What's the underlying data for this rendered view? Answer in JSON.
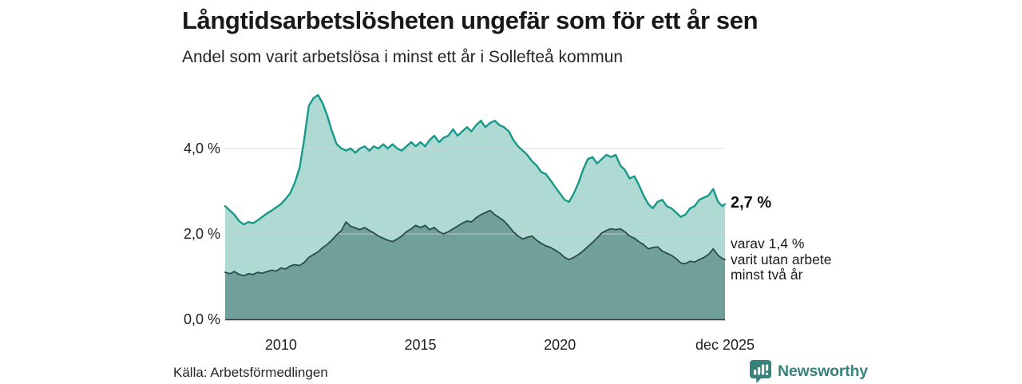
{
  "header": {
    "title": "Långtidsarbetslösheten ungefär som för ett år sen",
    "subtitle": "Andel som varit arbetslösa i minst ett år i Sollefteå kommun"
  },
  "chart_data": {
    "type": "area",
    "title": "Långtidsarbetslösheten ungefär som för ett år sen",
    "subtitle": "Andel som varit arbetslösa i minst ett år i Sollefteå kommun",
    "xlabel": "",
    "ylabel": "",
    "xlim": [
      2008.0,
      2025.92
    ],
    "ylim": [
      0,
      5.5
    ],
    "grid": true,
    "legend": "none",
    "x": [
      2008.0,
      2008.17,
      2008.33,
      2008.5,
      2008.67,
      2008.83,
      2009.0,
      2009.17,
      2009.33,
      2009.5,
      2009.67,
      2009.83,
      2010.0,
      2010.17,
      2010.33,
      2010.5,
      2010.67,
      2010.83,
      2011.0,
      2011.17,
      2011.33,
      2011.5,
      2011.67,
      2011.83,
      2012.0,
      2012.17,
      2012.33,
      2012.5,
      2012.67,
      2012.83,
      2013.0,
      2013.17,
      2013.33,
      2013.5,
      2013.67,
      2013.83,
      2014.0,
      2014.17,
      2014.33,
      2014.5,
      2014.67,
      2014.83,
      2015.0,
      2015.17,
      2015.33,
      2015.5,
      2015.67,
      2015.83,
      2016.0,
      2016.17,
      2016.33,
      2016.5,
      2016.67,
      2016.83,
      2017.0,
      2017.17,
      2017.33,
      2017.5,
      2017.67,
      2017.83,
      2018.0,
      2018.17,
      2018.33,
      2018.5,
      2018.67,
      2018.83,
      2019.0,
      2019.17,
      2019.33,
      2019.5,
      2019.67,
      2019.83,
      2020.0,
      2020.17,
      2020.33,
      2020.5,
      2020.67,
      2020.83,
      2021.0,
      2021.17,
      2021.33,
      2021.5,
      2021.67,
      2021.83,
      2022.0,
      2022.17,
      2022.33,
      2022.5,
      2022.67,
      2022.83,
      2023.0,
      2023.17,
      2023.33,
      2023.5,
      2023.67,
      2023.83,
      2024.0,
      2024.17,
      2024.33,
      2024.5,
      2024.67,
      2024.83,
      2025.0,
      2025.17,
      2025.33,
      2025.5,
      2025.67,
      2025.83,
      2025.92
    ],
    "series": [
      {
        "name": "Andel som varit arbetslösa i minst ett år",
        "line_color": "#17998a",
        "fill_color": "#aedad3",
        "end_value_label": "2,7 %",
        "values": [
          2.65,
          2.55,
          2.45,
          2.3,
          2.22,
          2.28,
          2.25,
          2.32,
          2.4,
          2.48,
          2.55,
          2.62,
          2.7,
          2.82,
          2.95,
          3.2,
          3.55,
          4.2,
          5.0,
          5.18,
          5.25,
          5.05,
          4.75,
          4.4,
          4.1,
          4.0,
          3.95,
          4.0,
          3.9,
          4.0,
          4.05,
          3.95,
          4.05,
          4.0,
          4.1,
          4.0,
          4.1,
          4.0,
          3.95,
          4.05,
          4.15,
          4.05,
          4.15,
          4.05,
          4.2,
          4.3,
          4.15,
          4.25,
          4.3,
          4.45,
          4.3,
          4.4,
          4.5,
          4.4,
          4.55,
          4.65,
          4.5,
          4.6,
          4.65,
          4.55,
          4.5,
          4.4,
          4.2,
          4.05,
          3.95,
          3.85,
          3.7,
          3.6,
          3.45,
          3.4,
          3.25,
          3.1,
          2.95,
          2.8,
          2.75,
          2.95,
          3.2,
          3.5,
          3.75,
          3.8,
          3.65,
          3.75,
          3.85,
          3.8,
          3.85,
          3.6,
          3.5,
          3.3,
          3.35,
          3.15,
          2.9,
          2.7,
          2.6,
          2.75,
          2.8,
          2.65,
          2.6,
          2.5,
          2.4,
          2.45,
          2.6,
          2.65,
          2.8,
          2.85,
          2.9,
          3.05,
          2.75,
          2.65,
          2.7
        ]
      },
      {
        "name": "Andel som varit arbetslösa i minst två år",
        "line_color": "#2a4c48",
        "fill_color": "#71a09a",
        "end_value_label": "varav 1,4 %",
        "values": [
          1.1,
          1.07,
          1.12,
          1.05,
          1.02,
          1.07,
          1.05,
          1.1,
          1.08,
          1.12,
          1.15,
          1.13,
          1.2,
          1.18,
          1.25,
          1.28,
          1.26,
          1.33,
          1.45,
          1.52,
          1.58,
          1.68,
          1.76,
          1.86,
          1.98,
          2.08,
          2.28,
          2.18,
          2.14,
          2.1,
          2.15,
          2.08,
          2.02,
          1.95,
          1.9,
          1.85,
          1.82,
          1.88,
          1.95,
          2.05,
          2.12,
          2.2,
          2.15,
          2.2,
          2.1,
          2.15,
          2.05,
          2.0,
          2.05,
          2.12,
          2.18,
          2.25,
          2.3,
          2.28,
          2.38,
          2.45,
          2.5,
          2.55,
          2.45,
          2.38,
          2.3,
          2.18,
          2.05,
          1.95,
          1.88,
          1.92,
          1.95,
          1.85,
          1.78,
          1.72,
          1.68,
          1.62,
          1.55,
          1.45,
          1.4,
          1.45,
          1.52,
          1.6,
          1.7,
          1.8,
          1.9,
          2.02,
          2.08,
          2.12,
          2.1,
          2.12,
          2.05,
          1.95,
          1.9,
          1.82,
          1.75,
          1.65,
          1.68,
          1.7,
          1.6,
          1.55,
          1.5,
          1.42,
          1.32,
          1.3,
          1.36,
          1.34,
          1.4,
          1.45,
          1.52,
          1.65,
          1.5,
          1.42,
          1.4
        ]
      }
    ],
    "yticks": [
      {
        "value": 0,
        "label": "0,0 %"
      },
      {
        "value": 2,
        "label": "2,0 %"
      },
      {
        "value": 4,
        "label": "4,0 %"
      }
    ],
    "xticks": [
      {
        "value": 2010,
        "label": "2010"
      },
      {
        "value": 2015,
        "label": "2015"
      },
      {
        "value": 2020,
        "label": "2020"
      },
      {
        "value": 2025.92,
        "label": "dec 2025"
      }
    ],
    "colors": {
      "gridline": "#d4d4d4",
      "baseline": "#3a3a3a"
    }
  },
  "annotations": {
    "total_end": "2,7 %",
    "two_year_end": "varav 1,4 %\nvarit utan arbete\nminst två år"
  },
  "footer": {
    "source": "Källa: Arbetsförmedlingen",
    "brand_name": "Newsworthy",
    "brand_color": "#37827b"
  }
}
